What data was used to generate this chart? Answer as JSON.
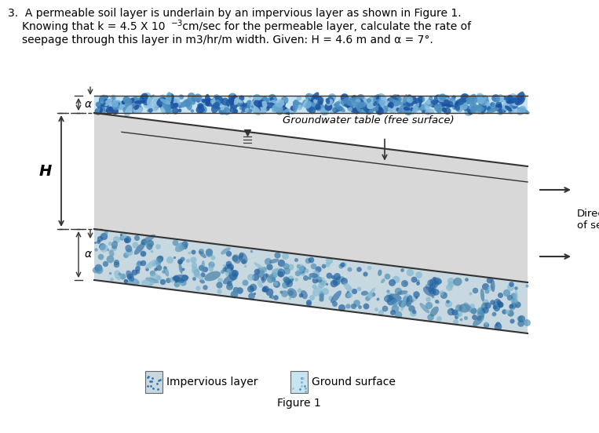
{
  "bg_color": "#ffffff",
  "text_color": "#000000",
  "figure_label": "Figure 1",
  "groundwater_label": "Groundwater table (free surface)",
  "direction_label": "Direction\nof seepage",
  "H_label": "H",
  "alpha_label": "α",
  "impervious_legend": "Impervious layer",
  "ground_legend": "Ground surface",
  "gray_layer_color": "#d8d8d8",
  "imp_layer_color": "#c8d8e0",
  "ground_surface_color": "#c8e4f0",
  "line_color": "#333333",
  "speckle_colors": [
    "#4a8fc0",
    "#2060a8",
    "#70b0d8",
    "#1a50a0",
    "#5090c0",
    "#90c0e0"
  ],
  "imp_speckle_colors": [
    "#5090b8",
    "#3070a0",
    "#80b8d0",
    "#2060a0"
  ],
  "text_line1": "3.  A permeable soil layer is underlain by an impervious layer as shown in Figure 1.",
  "text_line2a": "Knowing that k = 4.5 X 10",
  "text_line2b": "−3",
  "text_line2c": " cm/sec for the permeable layer, calculate the rate of",
  "text_line3": "seepage through this layer in m3/hr/m width. Given: H = 4.6 m and α = 7°."
}
